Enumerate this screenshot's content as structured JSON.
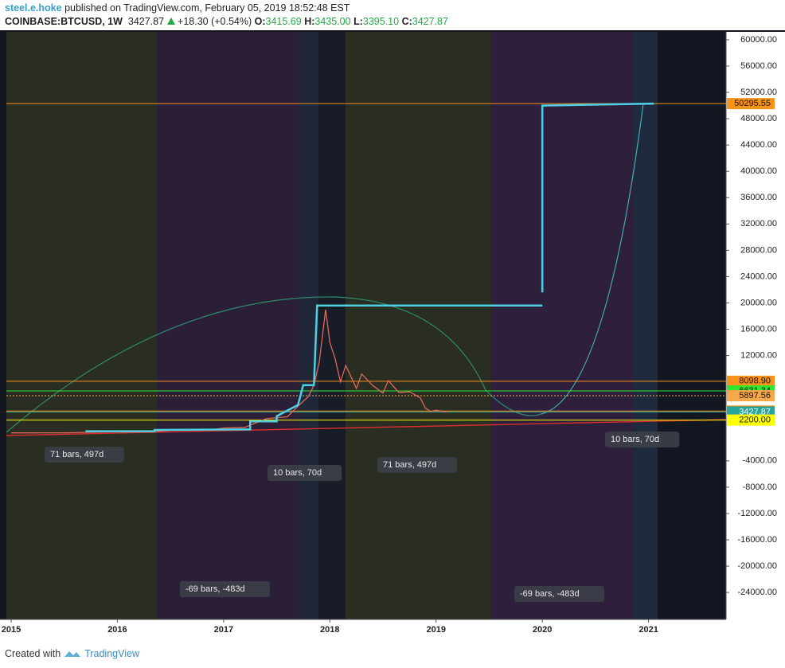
{
  "header": {
    "author": "steel.e.hoke",
    "published": "published on TradingView.com, February 05, 2019 18:52:48 EST",
    "symbol": "COINBASE:BTCUSD, 1W",
    "last": "3427.87",
    "change": "+18.30 (+0.54%)",
    "o_label": "O:",
    "o": "3415.69",
    "h_label": "H:",
    "h": "3435.00",
    "l_label": "L:",
    "l": "3395.10",
    "c_label": "C:",
    "c": "3427.87"
  },
  "chart_data": {
    "type": "line",
    "xlim": [
      2014.955,
      2021.73
    ],
    "xticks": [
      2015,
      2016,
      2017,
      2018,
      2019,
      2020,
      2021
    ],
    "ylim": [
      -28100,
      61200
    ],
    "yticks": [
      {
        "value": 60000,
        "label": "60000.00"
      },
      {
        "value": 56000,
        "label": "56000.00"
      },
      {
        "value": 52000,
        "label": "52000.00"
      },
      {
        "value": 48000,
        "label": "48000.00"
      },
      {
        "value": 44000,
        "label": "44000.00"
      },
      {
        "value": 40000,
        "label": "40000.00"
      },
      {
        "value": 36000,
        "label": "36000.00"
      },
      {
        "value": 32000,
        "label": "32000.00"
      },
      {
        "value": 28000,
        "label": "28000.00"
      },
      {
        "value": 24000,
        "label": "24000.00"
      },
      {
        "value": 20000,
        "label": "20000.00"
      },
      {
        "value": 16000,
        "label": "16000.00"
      },
      {
        "value": 12000,
        "label": "12000.00"
      },
      {
        "value": -4000,
        "label": "-4000.00"
      },
      {
        "value": -8000,
        "label": "-8000.00"
      },
      {
        "value": -12000,
        "label": "-12000.00"
      },
      {
        "value": -16000,
        "label": "-16000.00"
      },
      {
        "value": -20000,
        "label": "-20000.00"
      },
      {
        "value": -24000,
        "label": "-24000.00"
      }
    ],
    "series": [
      {
        "color": "#e0685c",
        "x": [
          2015.0,
          2015.5,
          2015.9,
          2016.3,
          2016.5,
          2016.9,
          2017.0,
          2017.2,
          2017.4,
          2017.6,
          2017.7,
          2017.8,
          2017.85,
          2017.9,
          2017.96,
          2018.0,
          2018.05,
          2018.1,
          2018.15,
          2018.25,
          2018.3,
          2018.4,
          2018.5,
          2018.55,
          2018.65,
          2018.75,
          2018.85,
          2018.9,
          2018.95,
          2019.0,
          2019.1
        ],
        "values": [
          250,
          260,
          400,
          420,
          650,
          750,
          1000,
          1100,
          2400,
          2700,
          4300,
          5800,
          7500,
          11000,
          19000,
          14000,
          11500,
          8000,
          10500,
          7000,
          9200,
          7500,
          6300,
          8200,
          6400,
          6500,
          5600,
          4000,
          3500,
          3700,
          3427.87
        ]
      },
      {
        "color": "#4dd0e1",
        "x": [
          2015.7,
          2016.35,
          2016.35,
          2017.25,
          2017.25,
          2017.5,
          2017.5,
          2017.7,
          2017.75,
          2017.85,
          2017.88,
          2020.0
        ],
        "values": [
          500,
          500,
          700,
          800,
          2000,
          2000,
          2800,
          4500,
          7500,
          7500,
          19600,
          19600
        ]
      },
      {
        "color": "#4dd0e1",
        "x": [
          2020.0,
          2020.0,
          2021.05
        ],
        "values": [
          21600,
          50000,
          50295.55
        ]
      }
    ],
    "levels": [
      {
        "value": 50295.55,
        "color": "#f7931a"
      },
      {
        "value": 8098.9,
        "label": "8098.90",
        "color": "#f7931a"
      },
      {
        "value": 6631.34,
        "color": "#2ee82e"
      },
      {
        "value": 5897.56,
        "color": "#f7a94a"
      },
      {
        "value": 3568.61,
        "color": "#f7931a"
      },
      {
        "value": 3427.87,
        "color": "#26a69a"
      },
      {
        "value": 2200,
        "label": "2200.00",
        "color": "#ffff00"
      }
    ],
    "annotations": [
      "71 bars, 497d",
      "71 bars, 497d",
      "10 bars, 70d",
      "10 bars, 70d",
      "-69 bars, -483d",
      "-69 bars, -483d"
    ]
  },
  "footer": {
    "text": "Created with",
    "brand": "TradingView"
  }
}
